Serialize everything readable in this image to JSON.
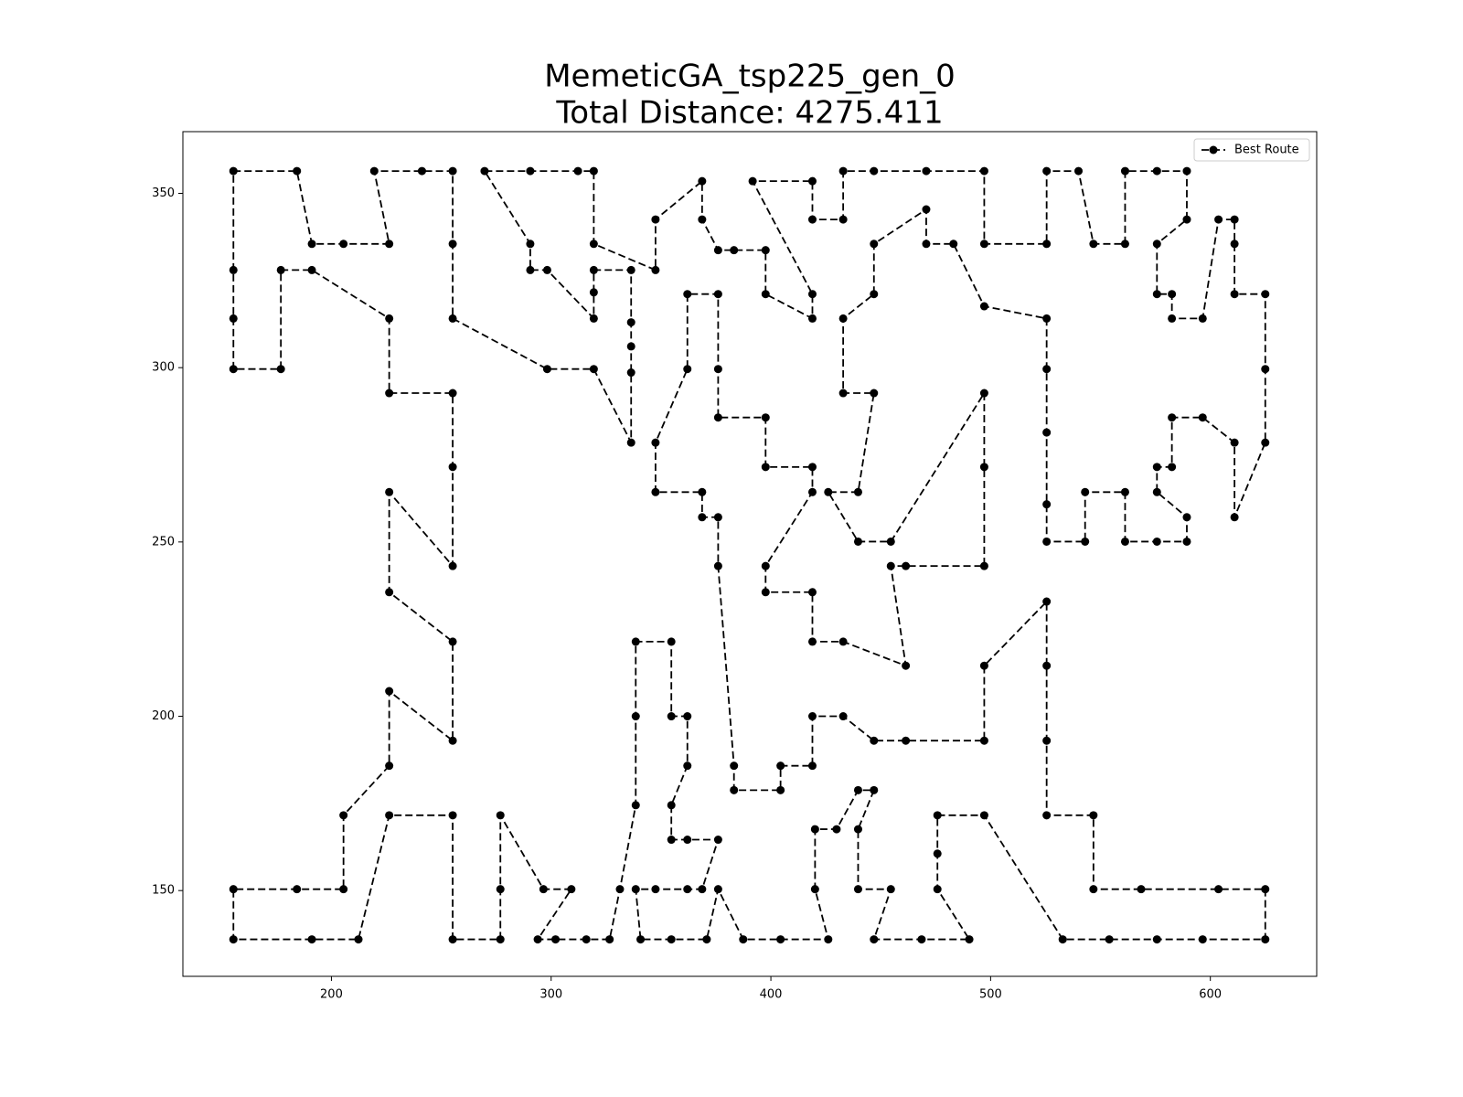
{
  "chart_data": {
    "type": "line",
    "title": "MemeticGA_tsp225_gen_0",
    "subtitle": "Total Distance: 4275.411",
    "x": [
      155.4,
      184.3,
      191.1,
      205.5,
      226.3,
      219.5,
      241.2,
      255.2,
      255.2,
      255.2,
      298.2,
      319.4,
      336.4,
      336.4,
      336.4,
      336.4,
      336.4,
      319.4,
      319.4,
      319.4,
      298.2,
      290.5,
      290.5,
      269.7,
      290.5,
      312.2,
      319.4,
      319.4,
      347.5,
      347.5,
      368.7,
      368.7,
      376.0,
      383.2,
      397.6,
      397.6,
      418.9,
      418.9,
      391.7,
      418.9,
      418.9,
      432.9,
      432.9,
      446.9,
      470.7,
      497.1,
      497.1,
      525.5,
      525.5,
      540.0,
      546.8,
      561.2,
      561.2,
      575.7,
      589.3,
      589.3,
      575.7,
      575.7,
      582.5,
      582.5,
      596.5,
      603.7,
      611.0,
      611.0,
      611.0,
      625.0,
      625.0,
      625.0,
      611.0,
      611.0,
      596.5,
      582.5,
      582.5,
      575.7,
      575.7,
      589.3,
      589.3,
      575.7,
      561.2,
      561.2,
      543.0,
      543.0,
      525.5,
      525.5,
      525.5,
      525.5,
      525.5,
      497.1,
      483.1,
      470.7,
      470.7,
      446.9,
      446.9,
      432.9,
      432.9,
      446.9,
      439.7,
      426.1,
      439.7,
      454.6,
      497.1,
      497.1,
      497.1,
      461.4,
      454.6,
      461.4,
      432.9,
      418.9,
      418.9,
      397.6,
      397.6,
      418.9,
      418.9,
      397.6,
      397.6,
      376.0,
      376.0,
      376.0,
      362.0,
      362.0,
      347.5,
      347.5,
      368.7,
      368.7,
      376.0,
      376.0,
      383.2,
      383.2,
      404.4,
      404.4,
      418.9,
      418.9,
      432.9,
      446.9,
      461.4,
      497.1,
      497.1,
      525.5,
      525.5,
      525.5,
      525.5,
      546.8,
      546.8,
      568.5,
      603.7,
      625.0,
      625.0,
      596.5,
      575.7,
      554.0,
      532.8,
      497.1,
      475.8,
      475.8,
      475.8,
      490.3,
      468.6,
      446.9,
      454.6,
      439.7,
      439.7,
      446.9,
      439.7,
      429.9,
      420.1,
      420.1,
      426.1,
      404.4,
      387.4,
      376.0,
      370.8,
      354.7,
      340.7,
      338.5,
      347.5,
      362.0,
      368.7,
      376.0,
      362.0,
      354.7,
      354.7,
      362.0,
      362.0,
      354.7,
      354.7,
      338.5,
      338.5,
      338.5,
      331.3,
      326.6,
      316.0,
      302.0,
      293.9,
      309.2,
      296.5,
      276.9,
      276.9,
      276.9,
      255.2,
      255.2,
      226.3,
      212.3,
      191.1,
      155.4,
      155.4,
      184.3,
      205.5,
      205.5,
      226.3,
      226.3,
      255.2,
      255.2,
      226.3,
      226.3,
      255.2,
      255.2,
      255.2,
      226.3,
      226.3,
      191.1,
      177.0,
      177.0,
      155.4,
      155.4,
      155.4
    ],
    "series": [
      {
        "name": "Best Route",
        "color": "#000000",
        "values": [
          356.4,
          356.4,
          335.5,
          335.5,
          335.5,
          356.4,
          356.4,
          356.4,
          335.5,
          314.1,
          299.6,
          299.6,
          278.5,
          298.6,
          306.1,
          313.0,
          328.0,
          328.0,
          321.6,
          314.1,
          328.0,
          328.0,
          335.5,
          356.4,
          356.4,
          356.4,
          356.4,
          335.5,
          328.0,
          342.5,
          353.5,
          342.5,
          333.7,
          333.7,
          333.7,
          321.1,
          314.1,
          321.1,
          353.5,
          353.5,
          342.5,
          342.5,
          356.4,
          356.4,
          356.4,
          356.4,
          335.5,
          335.5,
          356.4,
          356.4,
          335.5,
          335.5,
          356.4,
          356.4,
          356.4,
          342.5,
          335.5,
          321.1,
          321.1,
          314.1,
          314.1,
          342.5,
          342.5,
          335.5,
          321.1,
          321.1,
          299.6,
          278.5,
          257.1,
          278.5,
          285.7,
          285.7,
          271.5,
          271.5,
          264.3,
          257.1,
          250.1,
          250.1,
          250.1,
          264.3,
          264.3,
          250.1,
          250.1,
          260.8,
          281.4,
          299.6,
          314.1,
          317.6,
          335.5,
          335.5,
          345.4,
          335.5,
          321.1,
          314.1,
          292.7,
          292.7,
          264.3,
          264.3,
          250.1,
          250.1,
          292.7,
          271.5,
          243.1,
          243.1,
          243.1,
          214.5,
          221.4,
          221.4,
          235.6,
          235.6,
          243.1,
          264.3,
          271.5,
          271.5,
          285.7,
          285.7,
          299.6,
          321.1,
          321.1,
          299.6,
          278.5,
          264.3,
          264.3,
          257.1,
          257.1,
          243.1,
          185.8,
          178.8,
          178.8,
          185.8,
          185.8,
          200.0,
          200.0,
          193.0,
          193.0,
          193.0,
          214.5,
          232.9,
          214.5,
          193.0,
          171.6,
          171.6,
          150.4,
          150.4,
          150.4,
          150.4,
          136.0,
          136.0,
          136.0,
          136.0,
          136.0,
          171.6,
          171.6,
          160.6,
          150.4,
          136.0,
          136.0,
          136.0,
          150.4,
          150.4,
          167.6,
          178.8,
          178.8,
          167.6,
          167.6,
          150.4,
          136.0,
          136.0,
          136.0,
          150.4,
          136.0,
          136.0,
          136.0,
          150.4,
          150.4,
          150.4,
          150.4,
          164.6,
          164.6,
          164.6,
          174.5,
          185.8,
          200.0,
          200.0,
          221.4,
          221.4,
          200.0,
          174.5,
          150.4,
          136.0,
          136.0,
          136.0,
          136.0,
          150.4,
          150.4,
          171.6,
          150.4,
          136.0,
          136.0,
          171.6,
          171.6,
          136.0,
          136.0,
          136.0,
          150.4,
          150.4,
          150.4,
          171.6,
          185.8,
          207.2,
          193.0,
          221.4,
          235.6,
          264.3,
          243.1,
          271.5,
          292.7,
          292.7,
          314.1,
          328.0,
          328.0,
          299.6,
          299.6,
          314.1,
          328.0
        ]
      }
    ],
    "xlim": [
      132.4,
      648.4
    ],
    "ylim": [
      125.4,
      367.7
    ],
    "xticks": [
      200,
      300,
      400,
      500,
      600
    ],
    "yticks": [
      150,
      200,
      250,
      300,
      350
    ],
    "linestyle": "dashed",
    "closed": true,
    "legend": "upper right",
    "grid": false
  }
}
